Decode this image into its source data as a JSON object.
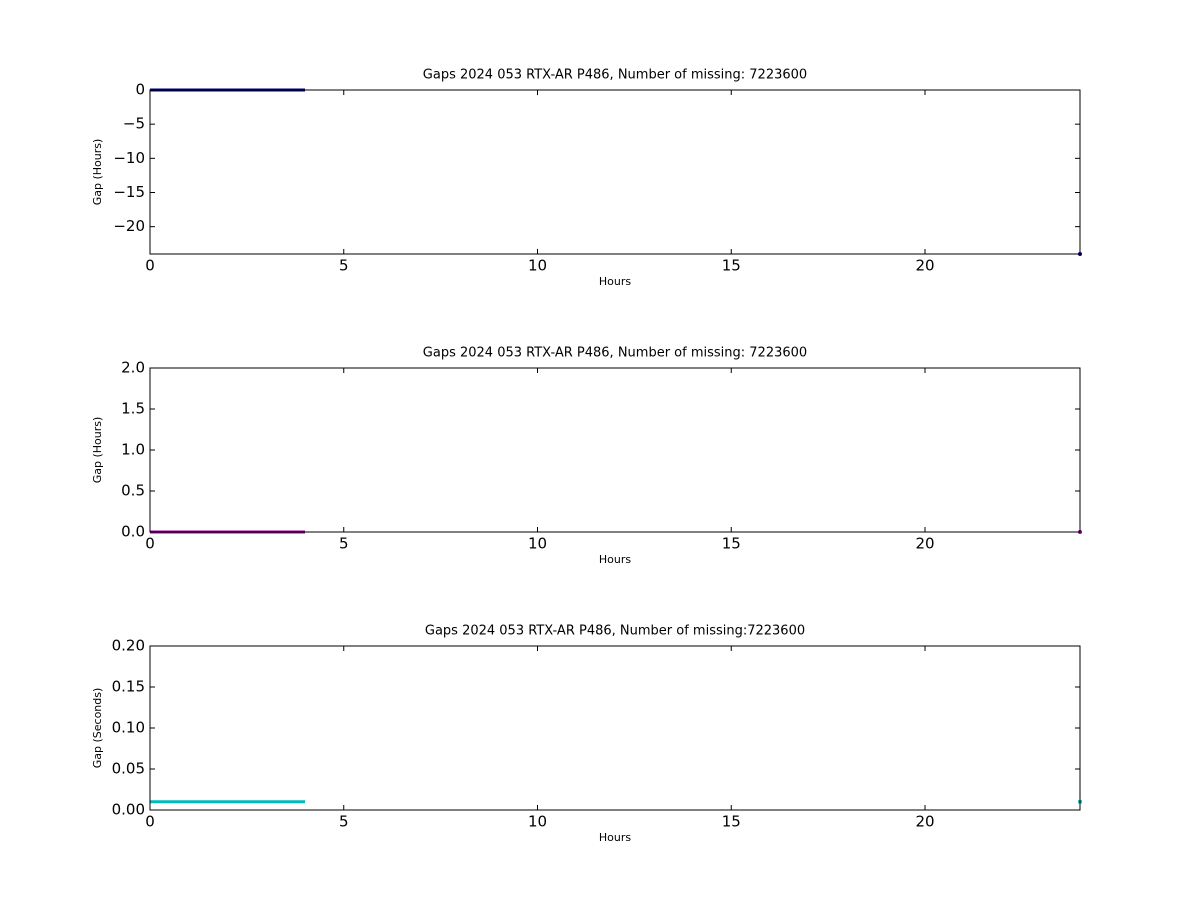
{
  "chart_data": [
    {
      "type": "line",
      "title": "Gaps 2024 053 RTX-AR  P486, Number of missing: 7223600",
      "xlabel": "Hours",
      "ylabel": "Gap (Hours)",
      "x": [
        0,
        4,
        4,
        24
      ],
      "series": [
        {
          "color": "#000080",
          "values": [
            0,
            0,
            null,
            -24
          ]
        }
      ],
      "xlim": [
        0,
        24
      ],
      "xticks": [
        0,
        5,
        10,
        15,
        20
      ],
      "ylim": [
        -24,
        0
      ],
      "yticks": [
        0,
        {
          "value": -5,
          "label": "−5"
        },
        {
          "value": -10,
          "label": "−10"
        },
        {
          "value": -15,
          "label": "−15"
        },
        {
          "value": -20,
          "label": "−20"
        }
      ]
    },
    {
      "type": "line",
      "title": "Gaps 2024 053 RTX-AR  P486, Number of missing: 7223600",
      "xlabel": "Hours",
      "ylabel": "Gap (Hours)",
      "x": [
        0,
        4,
        4,
        24
      ],
      "series": [
        {
          "color": "#990099",
          "values": [
            0,
            0,
            null,
            0
          ]
        }
      ],
      "xlim": [
        0,
        24
      ],
      "xticks": [
        0,
        5,
        10,
        15,
        20
      ],
      "ylim": [
        0,
        2
      ],
      "yticks": [
        {
          "value": 0,
          "label": "0.0"
        },
        {
          "value": 0.5,
          "label": "0.5"
        },
        {
          "value": 1,
          "label": "1.0"
        },
        {
          "value": 1.5,
          "label": "1.5"
        },
        {
          "value": 2,
          "label": "2.0"
        }
      ]
    },
    {
      "type": "line",
      "title": "Gaps 2024 053 RTX-AR  P486, Number of missing:7223600",
      "xlabel": "Hours",
      "ylabel": "Gap (Seconds)",
      "x": [
        0,
        4,
        4,
        24
      ],
      "series": [
        {
          "color": "#00bbbb",
          "values": [
            0.01,
            0.01,
            null,
            0.01
          ]
        }
      ],
      "xlim": [
        0,
        24
      ],
      "xticks": [
        0,
        5,
        10,
        15,
        20
      ],
      "ylim": [
        0,
        0.2
      ],
      "yticks": [
        {
          "value": 0,
          "label": "0.00"
        },
        {
          "value": 0.05,
          "label": "0.05"
        },
        {
          "value": 0.1,
          "label": "0.10"
        },
        {
          "value": 0.15,
          "label": "0.15"
        },
        {
          "value": 0.2,
          "label": "0.20"
        }
      ]
    }
  ]
}
